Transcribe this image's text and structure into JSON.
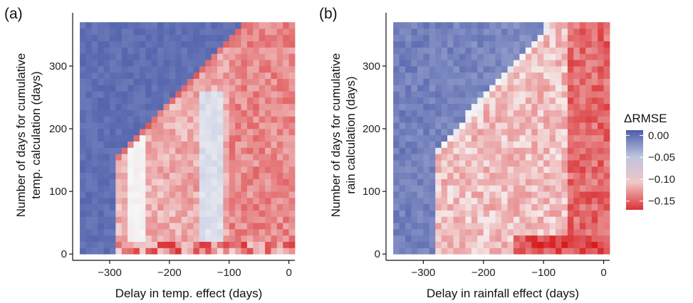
{
  "chart_data": [
    {
      "type": "heatmap",
      "panel_label": "(a)",
      "xlabel": "Delay in temp. effect (days)",
      "ylabel": "Number of days for cumulative temp. calculation (days)",
      "ylabel_lines": [
        "Number of days for cumulative",
        "temp. calculation (days)"
      ],
      "x_ticks": [
        -300,
        -200,
        -100,
        0
      ],
      "x_tick_labels": [
        "−300",
        "−200",
        "−100",
        "0"
      ],
      "y_ticks": [
        0,
        100,
        200,
        300
      ],
      "y_tick_labels": [
        "0",
        "100",
        "200",
        "300"
      ],
      "xlim": [
        -362,
        10
      ],
      "ylim": [
        -10,
        385
      ],
      "x_step": 10,
      "x_start": -345,
      "x_end": 5,
      "y_step": 10,
      "y_start": 5,
      "y_end": 365,
      "boundary": {
        "x": [
          -285,
          -75
        ],
        "y": [
          155,
          365
        ]
      },
      "missing_above_boundary": false
    },
    {
      "type": "heatmap",
      "panel_label": "(b)",
      "xlabel": "Delay in rainfall effect (days)",
      "ylabel": "Number of days for cumulative rain calculation (days)",
      "ylabel_lines": [
        "Number of days for cumulative",
        "rain calculation (days)"
      ],
      "x_ticks": [
        -300,
        -200,
        -100,
        0
      ],
      "x_tick_labels": [
        "−300",
        "−200",
        "−100",
        "0"
      ],
      "y_ticks": [
        0,
        100,
        200,
        300
      ],
      "y_tick_labels": [
        "0",
        "100",
        "200",
        "300"
      ],
      "xlim": [
        -362,
        10
      ],
      "ylim": [
        -10,
        385
      ],
      "x_step": 10,
      "x_start": -345,
      "x_end": 5,
      "y_step": 10,
      "y_start": 5,
      "y_end": 365,
      "boundary": {
        "x": [
          -275,
          -90
        ],
        "y": [
          165,
          365
        ]
      },
      "missing_above_boundary": false
    }
  ],
  "legend": {
    "title": "ΔRMSE",
    "ticks": [
      0.0,
      -0.05,
      -0.1,
      -0.15
    ],
    "tick_labels": [
      "0.00",
      "−0.05",
      "−0.10",
      "−0.15"
    ],
    "range": [
      -0.17,
      0.012
    ],
    "colors": {
      "high": "#4759a8",
      "mid": "#f7f7f7",
      "low": "#d7191c"
    }
  }
}
